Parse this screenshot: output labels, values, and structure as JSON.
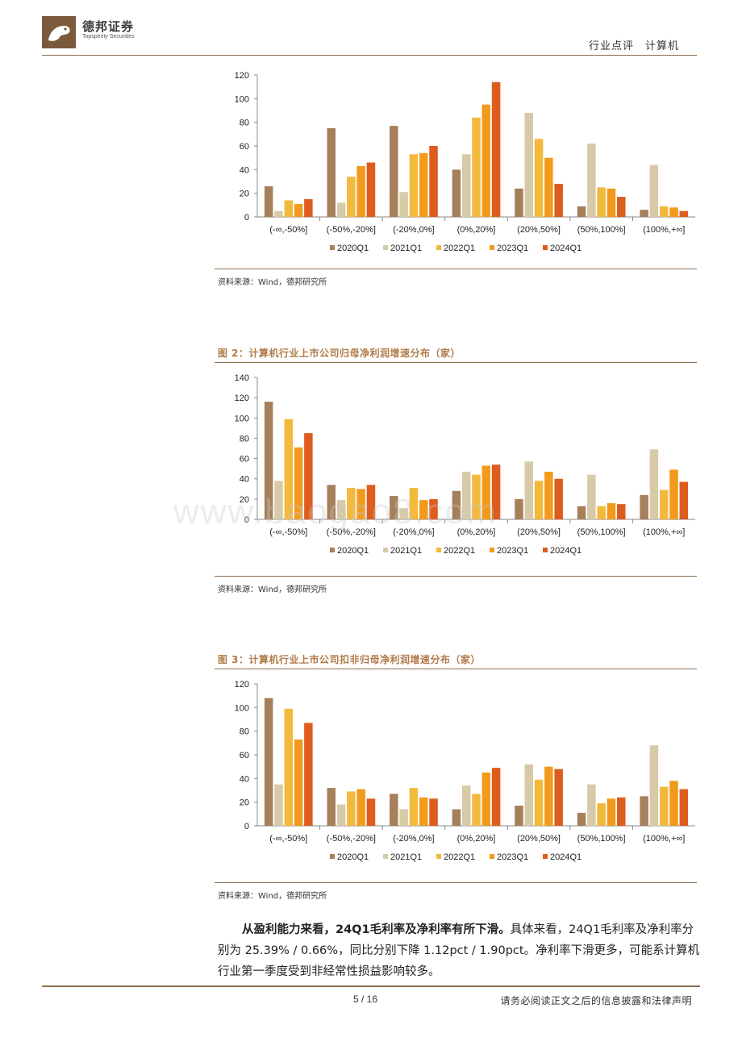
{
  "header": {
    "company_cn": "德邦证券",
    "company_en": "Topsperity Securities",
    "right_text": "行业点评　计算机"
  },
  "figures": [
    {
      "title": "",
      "source": "资料来源：Wind，德邦研究所",
      "chart_data": {
        "type": "bar",
        "categories": [
          "(-∞,-50%]",
          "(-50%,-20%]",
          "(-20%,0%]",
          "(0%,20%]",
          "(20%,50%]",
          "(50%,100%]",
          "(100%,+∞]"
        ],
        "ylim": [
          0,
          120
        ],
        "yticks": [
          0,
          20,
          40,
          60,
          80,
          100,
          120
        ],
        "legend_position": "bottom",
        "series": [
          {
            "name": "2020Q1",
            "color": "#a6805a",
            "values": [
              26,
              75,
              77,
              40,
              24,
              9,
              6
            ]
          },
          {
            "name": "2021Q1",
            "color": "#d8c9a8",
            "values": [
              5,
              12,
              21,
              53,
              88,
              62,
              44
            ]
          },
          {
            "name": "2022Q1",
            "color": "#f2b93d",
            "values": [
              14,
              34,
              53,
              84,
              66,
              25,
              9
            ]
          },
          {
            "name": "2023Q1",
            "color": "#f29a1c",
            "values": [
              11,
              43,
              54,
              95,
              50,
              24,
              8
            ]
          },
          {
            "name": "2024Q1",
            "color": "#dd5c1e",
            "values": [
              15,
              46,
              60,
              114,
              28,
              17,
              5
            ]
          }
        ]
      }
    },
    {
      "title": "图 2：计算机行业上市公司归母净利润增速分布（家）",
      "source": "资料来源：Wind，德邦研究所",
      "chart_data": {
        "type": "bar",
        "categories": [
          "(-∞,-50%]",
          "(-50%,-20%]",
          "(-20%,0%]",
          "(0%,20%]",
          "(20%,50%]",
          "(50%,100%]",
          "(100%,+∞]"
        ],
        "ylim": [
          0,
          140
        ],
        "yticks": [
          0,
          20,
          40,
          60,
          80,
          100,
          120,
          140
        ],
        "legend_position": "bottom",
        "series": [
          {
            "name": "2020Q1",
            "color": "#a6805a",
            "values": [
              116,
              34,
              23,
              28,
              20,
              13,
              24
            ]
          },
          {
            "name": "2021Q1",
            "color": "#d8c9a8",
            "values": [
              38,
              19,
              11,
              47,
              57,
              44,
              69
            ]
          },
          {
            "name": "2022Q1",
            "color": "#f2b93d",
            "values": [
              99,
              31,
              31,
              44,
              38,
              13,
              29
            ]
          },
          {
            "name": "2023Q1",
            "color": "#f29a1c",
            "values": [
              71,
              30,
              19,
              53,
              47,
              16,
              49
            ]
          },
          {
            "name": "2024Q1",
            "color": "#dd5c1e",
            "values": [
              85,
              34,
              20,
              54,
              40,
              15,
              37
            ]
          }
        ]
      }
    },
    {
      "title": "图 3：计算机行业上市公司扣非归母净利润增速分布（家）",
      "source": "资料来源：Wind，德邦研究所",
      "chart_data": {
        "type": "bar",
        "categories": [
          "(-∞,-50%]",
          "(-50%,-20%]",
          "(-20%,0%]",
          "(0%,20%]",
          "(20%,50%]",
          "(50%,100%]",
          "(100%,+∞]"
        ],
        "ylim": [
          0,
          120
        ],
        "yticks": [
          0,
          20,
          40,
          60,
          80,
          100,
          120
        ],
        "legend_position": "bottom",
        "series": [
          {
            "name": "2020Q1",
            "color": "#a6805a",
            "values": [
              108,
              32,
              27,
              14,
              17,
              11,
              25
            ]
          },
          {
            "name": "2021Q1",
            "color": "#d8c9a8",
            "values": [
              35,
              18,
              14,
              34,
              52,
              35,
              68
            ]
          },
          {
            "name": "2022Q1",
            "color": "#f2b93d",
            "values": [
              99,
              29,
              32,
              27,
              39,
              19,
              33
            ]
          },
          {
            "name": "2023Q1",
            "color": "#f29a1c",
            "values": [
              73,
              31,
              24,
              45,
              50,
              23,
              38
            ]
          },
          {
            "name": "2024Q1",
            "color": "#dd5c1e",
            "values": [
              87,
              23,
              23,
              49,
              48,
              24,
              31
            ]
          }
        ]
      }
    }
  ],
  "body": {
    "lead": "从盈利能力来看，24Q1毛利率及净利率有所下滑。",
    "text": "具体来看，24Q1毛利率及净利率分别为 25.39% / 0.66%，同比分别下降 1.12pct / 1.90pct。净利率下滑更多，可能系计算机行业第一季度受到非经常性损益影响较多。"
  },
  "footer": {
    "page": "5 / 16",
    "disclaimer": "请务必阅读正文之后的信息披露和法律声明"
  },
  "watermark": "www.baogao8.com"
}
